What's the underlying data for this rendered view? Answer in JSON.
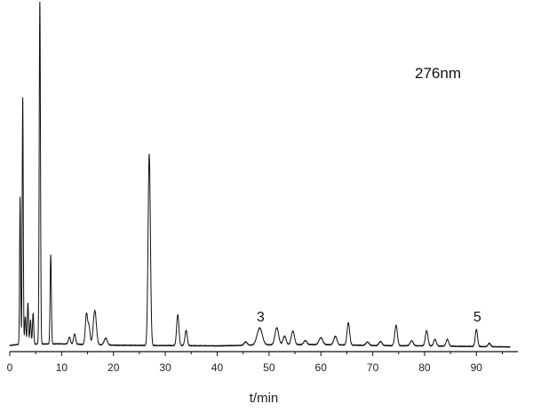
{
  "chart_data": {
    "type": "line",
    "title": "",
    "xlabel": "t/min",
    "ylabel": "",
    "xlim": [
      0,
      98
    ],
    "xticks": [
      0,
      10,
      20,
      30,
      40,
      50,
      60,
      70,
      80,
      90
    ],
    "grid": false,
    "y_axis_shown": false,
    "y_units": "relative absorbance (0 = baseline, 100 = tallest peak)",
    "annotations": [
      {
        "text": "276nm",
        "kind": "wavelength"
      },
      {
        "text": "3",
        "x": 48.2,
        "kind": "peak-label"
      },
      {
        "text": "5",
        "x": 90.0,
        "kind": "peak-label"
      }
    ],
    "baseline": [
      [
        0,
        1.0
      ],
      [
        2,
        1.4
      ],
      [
        10,
        1.5
      ],
      [
        20,
        1.1
      ],
      [
        30,
        1.0
      ],
      [
        40,
        0.9
      ],
      [
        50,
        1.2
      ],
      [
        60,
        1.3
      ],
      [
        70,
        1.0
      ],
      [
        80,
        0.9
      ],
      [
        90,
        0.7
      ],
      [
        96.5,
        0.6
      ]
    ],
    "peaks": [
      {
        "t": 2.0,
        "h": 43.0,
        "w": 0.1
      },
      {
        "t": 2.5,
        "h": 72.0,
        "w": 0.1
      },
      {
        "t": 3.0,
        "h": 8.0,
        "w": 0.12
      },
      {
        "t": 3.5,
        "h": 12.0,
        "w": 0.12
      },
      {
        "t": 4.0,
        "h": 7.0,
        "w": 0.12
      },
      {
        "t": 4.5,
        "h": 9.0,
        "w": 0.12
      },
      {
        "t": 5.8,
        "h": 100.0,
        "w": 0.12
      },
      {
        "t": 7.9,
        "h": 26.0,
        "w": 0.12
      },
      {
        "t": 11.5,
        "h": 2.0,
        "w": 0.2
      },
      {
        "t": 12.5,
        "h": 3.0,
        "w": 0.2
      },
      {
        "t": 14.8,
        "h": 9.0,
        "w": 0.22
      },
      {
        "t": 15.3,
        "h": 5.0,
        "w": 0.2
      },
      {
        "t": 16.4,
        "h": 10.0,
        "w": 0.3
      },
      {
        "t": 18.5,
        "h": 2.0,
        "w": 0.3
      },
      {
        "t": 26.9,
        "h": 56.0,
        "w": 0.22
      },
      {
        "t": 32.4,
        "h": 9.0,
        "w": 0.22
      },
      {
        "t": 34.0,
        "h": 4.5,
        "w": 0.22
      },
      {
        "t": 45.5,
        "h": 1.0,
        "w": 0.3
      },
      {
        "t": 48.2,
        "h": 5.0,
        "w": 0.5
      },
      {
        "t": 51.5,
        "h": 5.0,
        "w": 0.35
      },
      {
        "t": 53.0,
        "h": 2.5,
        "w": 0.3
      },
      {
        "t": 54.6,
        "h": 4.0,
        "w": 0.3
      },
      {
        "t": 57.0,
        "h": 1.2,
        "w": 0.3
      },
      {
        "t": 60.0,
        "h": 2.0,
        "w": 0.35
      },
      {
        "t": 62.8,
        "h": 2.5,
        "w": 0.3
      },
      {
        "t": 65.3,
        "h": 6.5,
        "w": 0.25
      },
      {
        "t": 69.0,
        "h": 1.0,
        "w": 0.3
      },
      {
        "t": 71.5,
        "h": 1.2,
        "w": 0.3
      },
      {
        "t": 74.5,
        "h": 6.0,
        "w": 0.25
      },
      {
        "t": 77.5,
        "h": 1.5,
        "w": 0.3
      },
      {
        "t": 80.4,
        "h": 4.5,
        "w": 0.25
      },
      {
        "t": 82.0,
        "h": 2.0,
        "w": 0.25
      },
      {
        "t": 84.4,
        "h": 2.0,
        "w": 0.25
      },
      {
        "t": 90.0,
        "h": 5.0,
        "w": 0.22
      },
      {
        "t": 92.5,
        "h": 1.0,
        "w": 0.25
      }
    ],
    "series": [
      {
        "x_range": [
          0,
          96.5
        ],
        "color": "#111111"
      }
    ]
  }
}
